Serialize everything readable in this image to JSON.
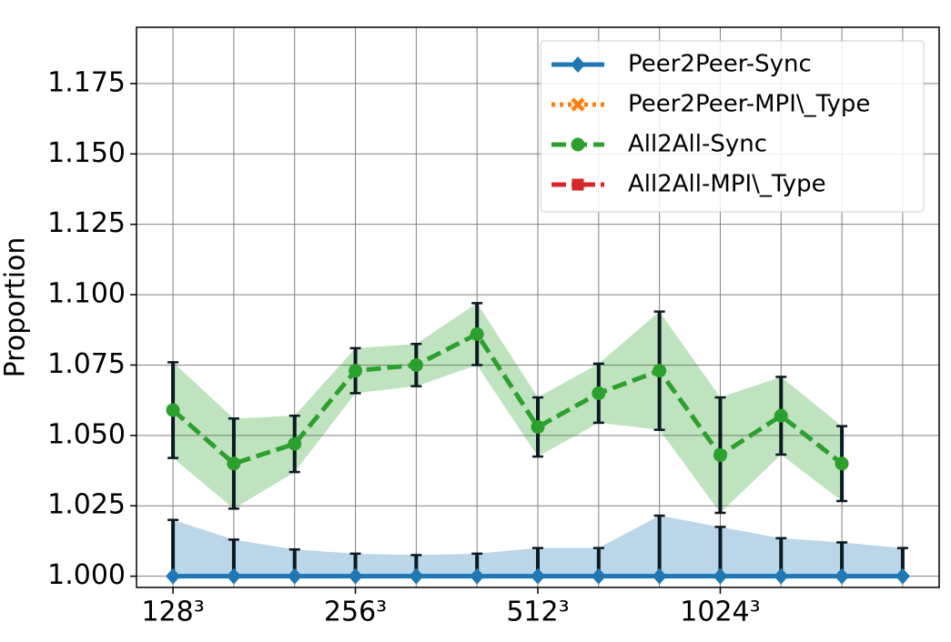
{
  "chart_data": {
    "type": "line",
    "y_label": "Proportion",
    "categories": [
      "128³",
      null,
      null,
      "256³",
      null,
      null,
      "512³",
      null,
      null,
      "1024³",
      null,
      null,
      null
    ],
    "series": [
      {
        "name": "Peer2Peer-Sync",
        "color": "#1f77b4",
        "marker": "diamond",
        "linestyle": "solid",
        "values": [
          1.0,
          1.0,
          1.0,
          1.0,
          1.0,
          1.0,
          1.0,
          1.0,
          1.0,
          1.0,
          1.0,
          1.0,
          1.0
        ],
        "errors": [
          0.02,
          0.013,
          0.0095,
          0.008,
          0.0075,
          0.008,
          0.01,
          0.01,
          0.0215,
          0.0175,
          0.0135,
          0.012,
          0.01
        ],
        "error_direction": "up"
      },
      {
        "name": "Peer2Peer-MPI\\_Type",
        "color": "#ff7f0e",
        "marker": "x",
        "linestyle": "dotted",
        "values": [
          null,
          null,
          null,
          null,
          null,
          null,
          null,
          null,
          null,
          null,
          null,
          null,
          null
        ]
      },
      {
        "name": "All2All-Sync",
        "color": "#2ca02c",
        "marker": "circle",
        "linestyle": "dashed",
        "values": [
          1.059,
          1.04,
          1.047,
          1.073,
          1.075,
          1.086,
          1.053,
          1.065,
          1.073,
          1.043,
          1.057,
          1.04,
          null
        ],
        "errors": [
          0.017,
          0.016,
          0.01,
          0.008,
          0.0075,
          0.011,
          0.0105,
          0.0105,
          0.021,
          0.0205,
          0.0138,
          0.0133,
          null
        ],
        "error_direction": "both"
      },
      {
        "name": "All2All-MPI\\_Type",
        "color": "#d62728",
        "marker": "square",
        "linestyle": "dashdot",
        "values": [
          null,
          null,
          null,
          null,
          null,
          null,
          null,
          null,
          null,
          null,
          null,
          null,
          null
        ]
      }
    ],
    "ylim": [
      0.996,
      1.195
    ],
    "yticks": [
      {
        "value": 1.0,
        "label": "1.000"
      },
      {
        "value": 1.025,
        "label": "1.025"
      },
      {
        "value": 1.05,
        "label": "1.050"
      },
      {
        "value": 1.075,
        "label": "1.075"
      },
      {
        "value": 1.1,
        "label": "1.100"
      },
      {
        "value": 1.125,
        "label": "1.125"
      },
      {
        "value": 1.15,
        "label": "1.150"
      },
      {
        "value": 1.175,
        "label": "1.175"
      }
    ],
    "grid": true,
    "legend": "upper right",
    "error_color": "#0b1a22"
  }
}
